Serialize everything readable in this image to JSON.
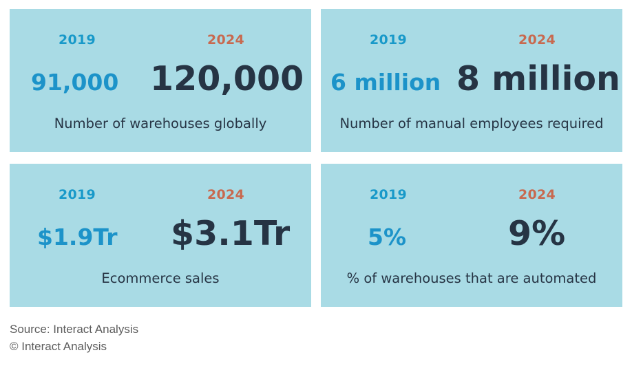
{
  "chart_data": [
    {
      "type": "table",
      "years": [
        "2019",
        "2024"
      ],
      "values": [
        "91,000",
        "120,000"
      ],
      "label": "Number of warehouses globally"
    },
    {
      "type": "table",
      "years": [
        "2019",
        "2024"
      ],
      "values": [
        "6 million",
        "8 million"
      ],
      "label": "Number of manual employees required"
    },
    {
      "type": "table",
      "years": [
        "2019",
        "2024"
      ],
      "values": [
        "$1.9Tr",
        "$3.1Tr"
      ],
      "label": "Ecommerce sales"
    },
    {
      "type": "table",
      "years": [
        "2019",
        "2024"
      ],
      "values": [
        "5%",
        "9%"
      ],
      "label": "% of warehouses that are automated"
    }
  ],
  "footer": {
    "source": "Source: Interact Analysis",
    "copyright": "© Interact Analysis"
  },
  "colors": {
    "card_bg": "#a9dbe5",
    "year_2019": "#1899c9",
    "year_2024": "#c8694f",
    "value_2019": "#1c93c9",
    "value_2024": "#263444"
  }
}
